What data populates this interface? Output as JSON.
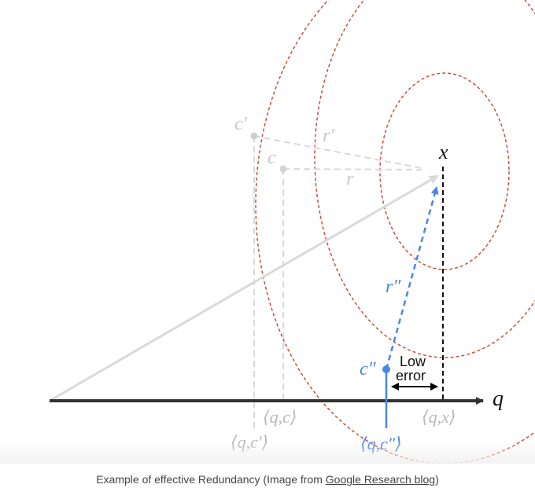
{
  "labels": {
    "c_prime": "c′",
    "c": "c",
    "r_prime": "r′",
    "r": "r",
    "x": "x",
    "r_double_prime": "r″",
    "c_double_prime": "c″",
    "low_error_line1": "Low",
    "low_error_line2": "error",
    "q": "q",
    "proj_qc": "⟨q,c⟩",
    "proj_qc_prime": "⟨q,c′⟩",
    "proj_qx": "⟨q,x⟩",
    "proj_qc_double_prime": "⟨q,c″⟩"
  },
  "caption": {
    "prefix": "Example of effective Redundancy (Image from ",
    "link": "Google Research blog",
    "suffix": ")"
  },
  "colors": {
    "gray": "#d4d4d4",
    "dark": "#333333",
    "blue": "#4a86e8",
    "contour": "#c8503c"
  }
}
